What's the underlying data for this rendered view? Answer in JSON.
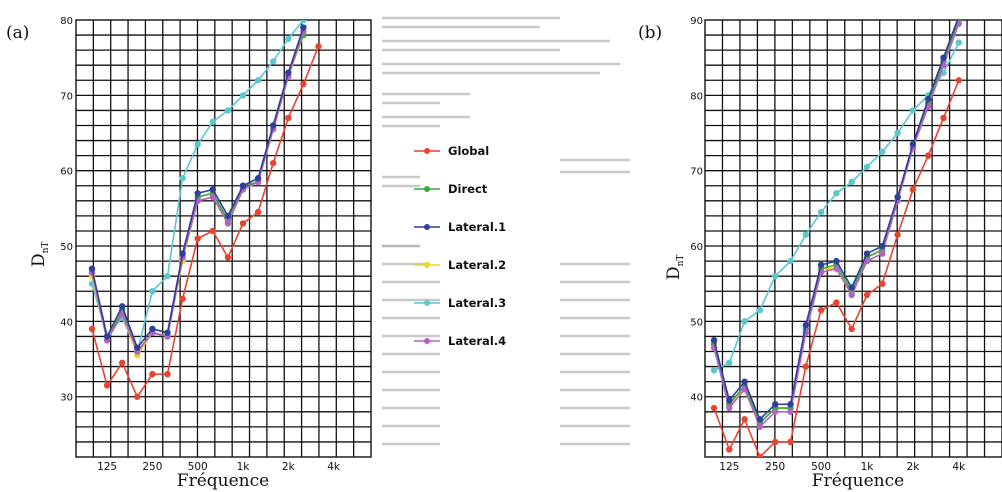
{
  "colors": {
    "Global": "#e8432e",
    "Direct": "#3aaa3a",
    "Lateral.1": "#2e3f9e",
    "Lateral.2": "#e8d820",
    "Lateral.3": "#5cc6cf",
    "Lateral.4": "#b463c2"
  },
  "legend": [
    "Global",
    "Direct",
    "Lateral.1",
    "Lateral.2",
    "Lateral.3",
    "Lateral.4"
  ],
  "chart_data": [
    {
      "panel_label": "(a)",
      "type": "line",
      "xlabel": "Fréquence",
      "ylabel_main": "D",
      "ylabel_sub": "nT",
      "x_tick_labels": [
        "125",
        "250",
        "500",
        "1k",
        "2k",
        "4k"
      ],
      "y_ticks": [
        30,
        40,
        50,
        60,
        70,
        80
      ],
      "ylim": [
        22,
        80
      ],
      "x": [
        100,
        125,
        160,
        200,
        250,
        315,
        400,
        500,
        630,
        800,
        1000,
        1250,
        1600,
        2000,
        2500,
        3150
      ],
      "series": [
        {
          "name": "Global",
          "values": [
            39,
            31.5,
            34.5,
            30,
            33,
            33,
            43,
            51,
            52,
            48.5,
            53,
            54.5,
            61,
            67,
            71.5,
            76.5
          ]
        },
        {
          "name": "Direct",
          "values": [
            46.5,
            37.5,
            41.5,
            36,
            38.5,
            38,
            48.5,
            56.5,
            57,
            53.5,
            58,
            58.5,
            66,
            73,
            78,
            null
          ]
        },
        {
          "name": "Lateral.1",
          "values": [
            47,
            38,
            42,
            36.5,
            39,
            38.5,
            49,
            57,
            57.5,
            54,
            58,
            59,
            66,
            73,
            79,
            null
          ]
        },
        {
          "name": "Lateral.2",
          "values": [
            46,
            37.5,
            41,
            35.5,
            38.5,
            38,
            48,
            56,
            56.5,
            53.5,
            57.5,
            58.5,
            65.5,
            72.5,
            78,
            null
          ]
        },
        {
          "name": "Lateral.3",
          "values": [
            45,
            38,
            40.5,
            36,
            44,
            46,
            59,
            63.5,
            66.5,
            68,
            70,
            72,
            74.5,
            77.5,
            80,
            null
          ]
        },
        {
          "name": "Lateral.4",
          "values": [
            46.5,
            37.5,
            41,
            36,
            38.5,
            38,
            48.5,
            56,
            56.5,
            53,
            57.5,
            58.5,
            65.5,
            72.5,
            78.5,
            null
          ]
        }
      ]
    },
    {
      "panel_label": "(b)",
      "type": "line",
      "xlabel": "Fréquence",
      "ylabel_main": "D",
      "ylabel_sub": "nT",
      "x_tick_labels": [
        "125",
        "250",
        "500",
        "1k",
        "2k",
        "4k"
      ],
      "y_ticks": [
        40,
        50,
        60,
        70,
        80,
        90
      ],
      "ylim": [
        32,
        90
      ],
      "x": [
        100,
        125,
        160,
        200,
        250,
        315,
        400,
        500,
        630,
        800,
        1000,
        1250,
        1600,
        2000,
        2500,
        3150,
        4000
      ],
      "series": [
        {
          "name": "Global",
          "values": [
            38.5,
            33,
            37,
            32,
            34,
            34,
            44,
            51.5,
            52.5,
            49,
            53.5,
            55,
            61.5,
            67.5,
            72,
            77,
            82
          ]
        },
        {
          "name": "Direct",
          "values": [
            47,
            39,
            41.5,
            36.5,
            38.5,
            38.5,
            49,
            57,
            57.5,
            54,
            58.5,
            59.5,
            66.5,
            73,
            79,
            84.5,
            90
          ]
        },
        {
          "name": "Lateral.1",
          "values": [
            47.5,
            39.5,
            42,
            37,
            39,
            39,
            49.5,
            57.5,
            58,
            54.5,
            59,
            60,
            66.5,
            73.5,
            79.5,
            85,
            90.5
          ]
        },
        {
          "name": "Lateral.2",
          "values": [
            46.5,
            39,
            41,
            36.5,
            38.5,
            38.5,
            48.5,
            57,
            57,
            54,
            58.5,
            59.5,
            66,
            73,
            79,
            84.5,
            90
          ]
        },
        {
          "name": "Lateral.3",
          "values": [
            43.5,
            44.5,
            50,
            51.5,
            56,
            58,
            61.5,
            64.5,
            67,
            68.5,
            70.5,
            72.5,
            75,
            78,
            80,
            83,
            87
          ]
        },
        {
          "name": "Lateral.4",
          "values": [
            46.5,
            38.5,
            41,
            36,
            38,
            38,
            48.5,
            56.5,
            57,
            53.5,
            58,
            59,
            66,
            73,
            78.5,
            84,
            89.5
          ]
        }
      ]
    }
  ]
}
